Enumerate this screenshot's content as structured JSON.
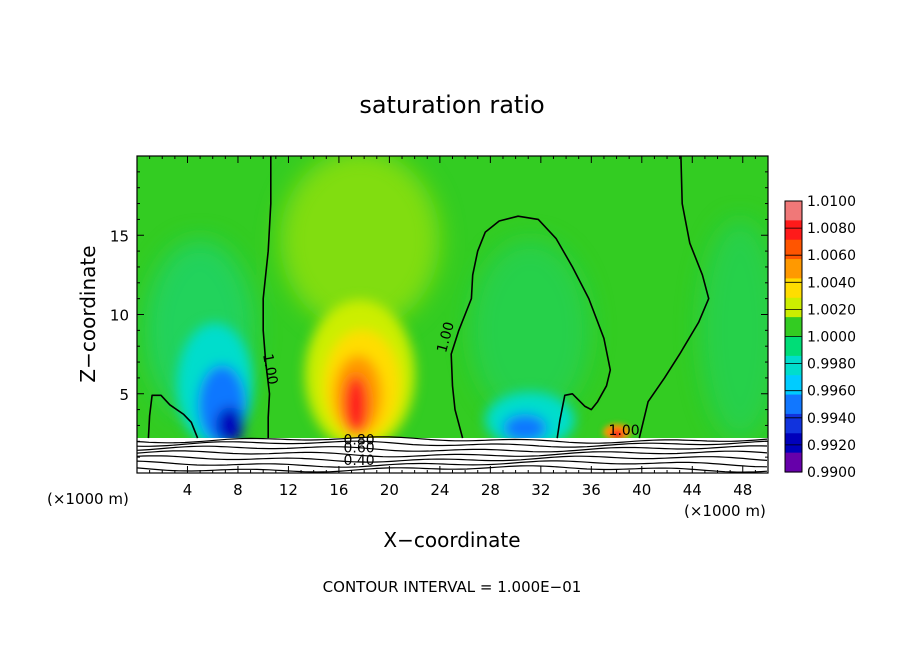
{
  "chart_data": {
    "type": "heatmap",
    "title": "saturation ratio",
    "xlabel": "X−coordinate",
    "ylabel": "Z−coordinate",
    "x_unit_left": "(×1000 m)",
    "x_unit_right": "(×1000 m)",
    "xlim": [
      0,
      50
    ],
    "ylim": [
      0,
      20
    ],
    "x_ticks": [
      {
        "value": 4,
        "label": "4"
      },
      {
        "value": 8,
        "label": "8"
      },
      {
        "value": 12,
        "label": "12"
      },
      {
        "value": 16,
        "label": "16"
      },
      {
        "value": 20,
        "label": "20"
      },
      {
        "value": 24,
        "label": "24"
      },
      {
        "value": 28,
        "label": "28"
      },
      {
        "value": 32,
        "label": "32"
      },
      {
        "value": 36,
        "label": "36"
      },
      {
        "value": 40,
        "label": "40"
      },
      {
        "value": 44,
        "label": "44"
      },
      {
        "value": 48,
        "label": "48"
      }
    ],
    "y_ticks": [
      {
        "value": 5,
        "label": "5"
      },
      {
        "value": 10,
        "label": "10"
      },
      {
        "value": 15,
        "label": "15"
      }
    ],
    "footer": "CONTOUR INTERVAL = 1.000E−01",
    "colorbar": {
      "levels": [
        "1.0100",
        "1.0080",
        "1.0060",
        "1.0040",
        "1.0020",
        "1.0000",
        "0.9980",
        "0.9960",
        "0.9940",
        "0.9920",
        "0.9900"
      ],
      "colors_top_to_bottom": [
        "#f07878",
        "#ff1a1a",
        "#ff5500",
        "#ff9900",
        "#ffdd00",
        "#ccee00",
        "#33cc22",
        "#00dd77",
        "#00ddcc",
        "#00ccff",
        "#1177ff",
        "#1133dd",
        "#0000bb",
        "#6600aa"
      ]
    },
    "field_background_value": 1.0,
    "features": [
      {
        "kind": "dry",
        "x": 7.5,
        "z": 3.0,
        "value": 0.993
      },
      {
        "kind": "moist",
        "x": 17.5,
        "z": 4.5,
        "value": 1.007
      },
      {
        "kind": "dry",
        "x": 31.5,
        "z": 3.0,
        "value": 0.994
      },
      {
        "kind": "moist",
        "x": 38.5,
        "z": 2.8,
        "value": 1.006
      }
    ],
    "contour_labels": [
      {
        "text": "1.00",
        "x": 10.2,
        "z": 6.5
      },
      {
        "text": "1.00",
        "x": 24.8,
        "z": 8.5
      },
      {
        "text": "1.00",
        "x": 38.6,
        "z": 2.4
      },
      {
        "text": "0.80",
        "x": 17.6,
        "z": 1.8
      },
      {
        "text": "0.60",
        "x": 17.6,
        "z": 1.3
      },
      {
        "text": "0.40",
        "x": 17.6,
        "z": 0.5
      }
    ],
    "contour_lines": [
      {
        "name": "left",
        "value": 1.0,
        "points": [
          [
            10.6,
            20
          ],
          [
            10.6,
            17
          ],
          [
            10.4,
            14
          ],
          [
            10.0,
            11
          ],
          [
            10.0,
            9
          ],
          [
            10.2,
            7
          ],
          [
            10.5,
            5
          ],
          [
            10.4,
            3.5
          ],
          [
            10.4,
            2.2
          ]
        ]
      },
      {
        "name": "left-lobe",
        "value": 1.0,
        "points": [
          [
            0.9,
            2.2
          ],
          [
            1.0,
            3.6
          ],
          [
            1.2,
            4.9
          ],
          [
            1.9,
            4.9
          ],
          [
            2.6,
            4.3
          ],
          [
            3.7,
            3.7
          ],
          [
            4.3,
            3.2
          ],
          [
            4.8,
            2.2
          ]
        ]
      },
      {
        "name": "center",
        "value": 1.0,
        "points": [
          [
            25.8,
            2.2
          ],
          [
            25.2,
            4.0
          ],
          [
            25.0,
            5.5
          ],
          [
            24.9,
            7.5
          ],
          [
            25.5,
            9.0
          ],
          [
            26.0,
            10.0
          ],
          [
            26.5,
            11.0
          ],
          [
            26.6,
            12.5
          ],
          [
            27.0,
            14.0
          ],
          [
            27.6,
            15.2
          ],
          [
            28.7,
            15.9
          ],
          [
            30.2,
            16.2
          ],
          [
            31.8,
            16.0
          ],
          [
            33.2,
            14.8
          ],
          [
            34.5,
            13.0
          ],
          [
            35.8,
            11.0
          ],
          [
            37.0,
            8.5
          ],
          [
            37.5,
            6.5
          ],
          [
            37.2,
            5.5
          ],
          [
            36.5,
            4.5
          ],
          [
            36.0,
            4.0
          ],
          [
            35.5,
            4.2
          ],
          [
            34.5,
            5.0
          ],
          [
            33.9,
            4.9
          ],
          [
            33.5,
            3.3
          ],
          [
            33.3,
            2.2
          ]
        ]
      },
      {
        "name": "right-loop",
        "value": 1.0,
        "points": [
          [
            39.8,
            2.2
          ],
          [
            40.5,
            4.5
          ],
          [
            41.8,
            6.0
          ],
          [
            43.0,
            7.5
          ],
          [
            44.5,
            9.5
          ],
          [
            45.3,
            11.0
          ],
          [
            44.8,
            12.5
          ],
          [
            43.8,
            14.5
          ],
          [
            43.2,
            17.0
          ],
          [
            43.1,
            20.0
          ]
        ]
      }
    ]
  }
}
